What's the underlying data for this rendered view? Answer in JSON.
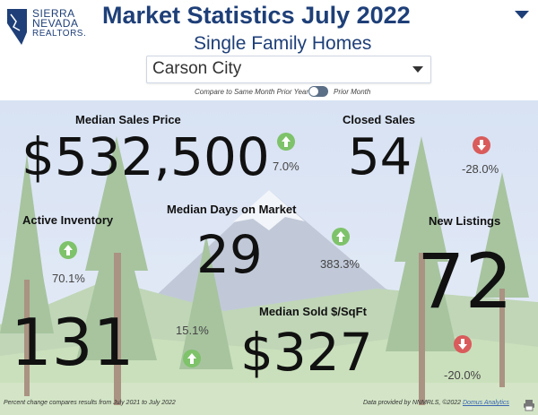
{
  "header": {
    "logo_lines": [
      "SIERRA",
      "NEVADA",
      "REALTORS."
    ],
    "title": "Market Statistics  July 2022",
    "subtitle": "Single Family Homes"
  },
  "area_select": {
    "value": "Carson City"
  },
  "compare_toggle": {
    "left_label": "Compare to Same Month Prior Year",
    "right_label": "Prior Month"
  },
  "stats": {
    "median_sales_price": {
      "label": "Median Sales Price",
      "value": "$532,500",
      "change": "7.0%",
      "direction": "up"
    },
    "closed_sales": {
      "label": "Closed Sales",
      "value": "54",
      "change": "-28.0%",
      "direction": "down"
    },
    "active_inventory": {
      "label": "Active Inventory",
      "value": "131",
      "change": "70.1%",
      "direction": "up"
    },
    "median_days_on_market": {
      "label": "Median Days on Market",
      "value": "29",
      "change": "383.3%",
      "direction": "up"
    },
    "new_listings": {
      "label": "New Listings",
      "value": "72",
      "change": "-20.0%",
      "direction": "down"
    },
    "median_sold_sqft": {
      "label": "Median Sold $/SqFt",
      "value": "$327",
      "change": "15.1%",
      "direction": "up"
    }
  },
  "footer": {
    "note": "Percent change compares results from July 2021 to July 2022",
    "provider": "Data provided by NNMRLS, ©2022",
    "provider_link": "Domus Analytics"
  },
  "colors": {
    "brand": "#1e3f78",
    "up": "#7ec26a",
    "down": "#d95b5b"
  },
  "icons": [
    "state-logo-icon",
    "chevron-down-icon",
    "arrow-up-icon",
    "arrow-down-icon",
    "printer-icon"
  ]
}
